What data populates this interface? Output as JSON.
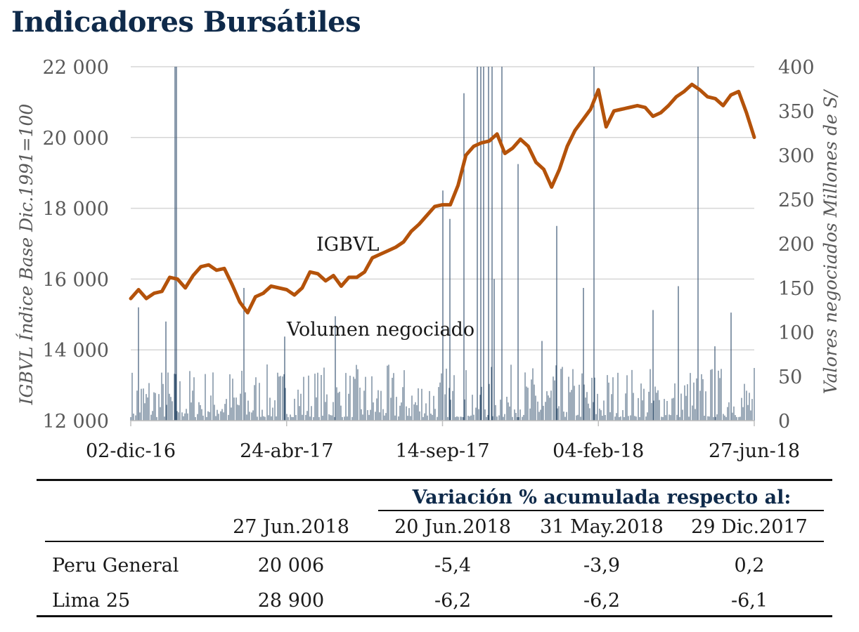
{
  "title": "Indicadores Bursátiles",
  "chart_data": {
    "type": "line",
    "x_ticks": [
      "02-dic-16",
      "24-abr-17",
      "14-sep-17",
      "04-feb-18",
      "27-jun-18"
    ],
    "y_left": {
      "label": "IGBVL Índice Base Dic.1991=100",
      "range": [
        12000,
        22000
      ],
      "ticks": [
        "12 000",
        "14 000",
        "16 000",
        "18 000",
        "20 000",
        "22 000"
      ]
    },
    "y_right": {
      "label": "Valores negociados Millones de S/",
      "range": [
        0,
        400
      ],
      "ticks": [
        "0",
        "50",
        "100",
        "150",
        "200",
        "250",
        "300",
        "350",
        "400"
      ]
    },
    "grid": true,
    "annotations": [
      "IGBVL",
      "Volumen negociado"
    ],
    "colors": {
      "igbvl": "#b4520a",
      "volume": "#3d5875",
      "grid": "#d6d6d6",
      "axis_text": "#595959"
    },
    "series": [
      {
        "name": "IGBVL",
        "points": [
          [
            "02-dic-16",
            15450
          ],
          [
            "09-dic-16",
            15700
          ],
          [
            "16-dic-16",
            15450
          ],
          [
            "23-dic-16",
            15600
          ],
          [
            "30-dic-16",
            15650
          ],
          [
            "06-ene-17",
            16050
          ],
          [
            "13-ene-17",
            16000
          ],
          [
            "20-ene-17",
            15750
          ],
          [
            "27-ene-17",
            16100
          ],
          [
            "03-feb-17",
            16350
          ],
          [
            "10-feb-17",
            16400
          ],
          [
            "17-feb-17",
            16250
          ],
          [
            "24-feb-17",
            16300
          ],
          [
            "03-mar-17",
            15850
          ],
          [
            "10-mar-17",
            15350
          ],
          [
            "17-mar-17",
            15050
          ],
          [
            "24-mar-17",
            15500
          ],
          [
            "31-mar-17",
            15600
          ],
          [
            "07-abr-17",
            15800
          ],
          [
            "14-abr-17",
            15750
          ],
          [
            "24-abr-17",
            15700
          ],
          [
            "01-may-17",
            15550
          ],
          [
            "08-may-17",
            15750
          ],
          [
            "15-may-17",
            16200
          ],
          [
            "22-may-17",
            16150
          ],
          [
            "29-may-17",
            15950
          ],
          [
            "05-jun-17",
            16100
          ],
          [
            "12-jun-17",
            15800
          ],
          [
            "19-jun-17",
            16050
          ],
          [
            "26-jun-17",
            16050
          ],
          [
            "03-jul-17",
            16200
          ],
          [
            "10-jul-17",
            16600
          ],
          [
            "17-jul-17",
            16700
          ],
          [
            "24-jul-17",
            16800
          ],
          [
            "31-jul-17",
            16900
          ],
          [
            "07-ago-17",
            17050
          ],
          [
            "14-ago-17",
            17350
          ],
          [
            "21-ago-17",
            17550
          ],
          [
            "28-ago-17",
            17800
          ],
          [
            "04-sep-17",
            18050
          ],
          [
            "14-sep-17",
            18100
          ],
          [
            "21-sep-17",
            18100
          ],
          [
            "28-sep-17",
            18650
          ],
          [
            "05-oct-17",
            19500
          ],
          [
            "12-oct-17",
            19750
          ],
          [
            "19-oct-17",
            19850
          ],
          [
            "26-oct-17",
            19900
          ],
          [
            "02-nov-17",
            20100
          ],
          [
            "09-nov-17",
            19550
          ],
          [
            "16-nov-17",
            19700
          ],
          [
            "23-nov-17",
            19950
          ],
          [
            "30-nov-17",
            19750
          ],
          [
            "07-dic-17",
            19300
          ],
          [
            "14-dic-17",
            19100
          ],
          [
            "21-dic-17",
            18600
          ],
          [
            "28-dic-17",
            19100
          ],
          [
            "04-ene-18",
            19750
          ],
          [
            "11-ene-18",
            20200
          ],
          [
            "18-ene-18",
            20500
          ],
          [
            "25-ene-18",
            20800
          ],
          [
            "04-feb-18",
            21350
          ],
          [
            "11-feb-18",
            20300
          ],
          [
            "18-feb-18",
            20750
          ],
          [
            "25-feb-18",
            20800
          ],
          [
            "04-mar-18",
            20850
          ],
          [
            "11-mar-18",
            20900
          ],
          [
            "18-mar-18",
            20850
          ],
          [
            "25-mar-18",
            20600
          ],
          [
            "01-abr-18",
            20700
          ],
          [
            "08-abr-18",
            20900
          ],
          [
            "15-abr-18",
            21150
          ],
          [
            "22-abr-18",
            21300
          ],
          [
            "29-abr-18",
            21500
          ],
          [
            "06-may-18",
            21350
          ],
          [
            "13-may-18",
            21150
          ],
          [
            "20-may-18",
            21100
          ],
          [
            "27-may-18",
            20900
          ],
          [
            "03-jun-18",
            21200
          ],
          [
            "10-jun-18",
            21300
          ],
          [
            "17-jun-18",
            20700
          ],
          [
            "27-jun-18",
            20006
          ]
        ]
      }
    ]
  },
  "table": {
    "span_header": "Variación % acumulada respecto al:",
    "columns": [
      "27 Jun.2018",
      "20 Jun.2018",
      "31 May.2018",
      "29 Dic.2017"
    ],
    "rows": [
      {
        "label": "Peru General",
        "values": [
          "20 006",
          "-5,4",
          "-3,9",
          "0,2"
        ]
      },
      {
        "label": "Lima 25",
        "values": [
          "28 900",
          "-6,2",
          "-6,2",
          "-6,1"
        ]
      }
    ]
  }
}
